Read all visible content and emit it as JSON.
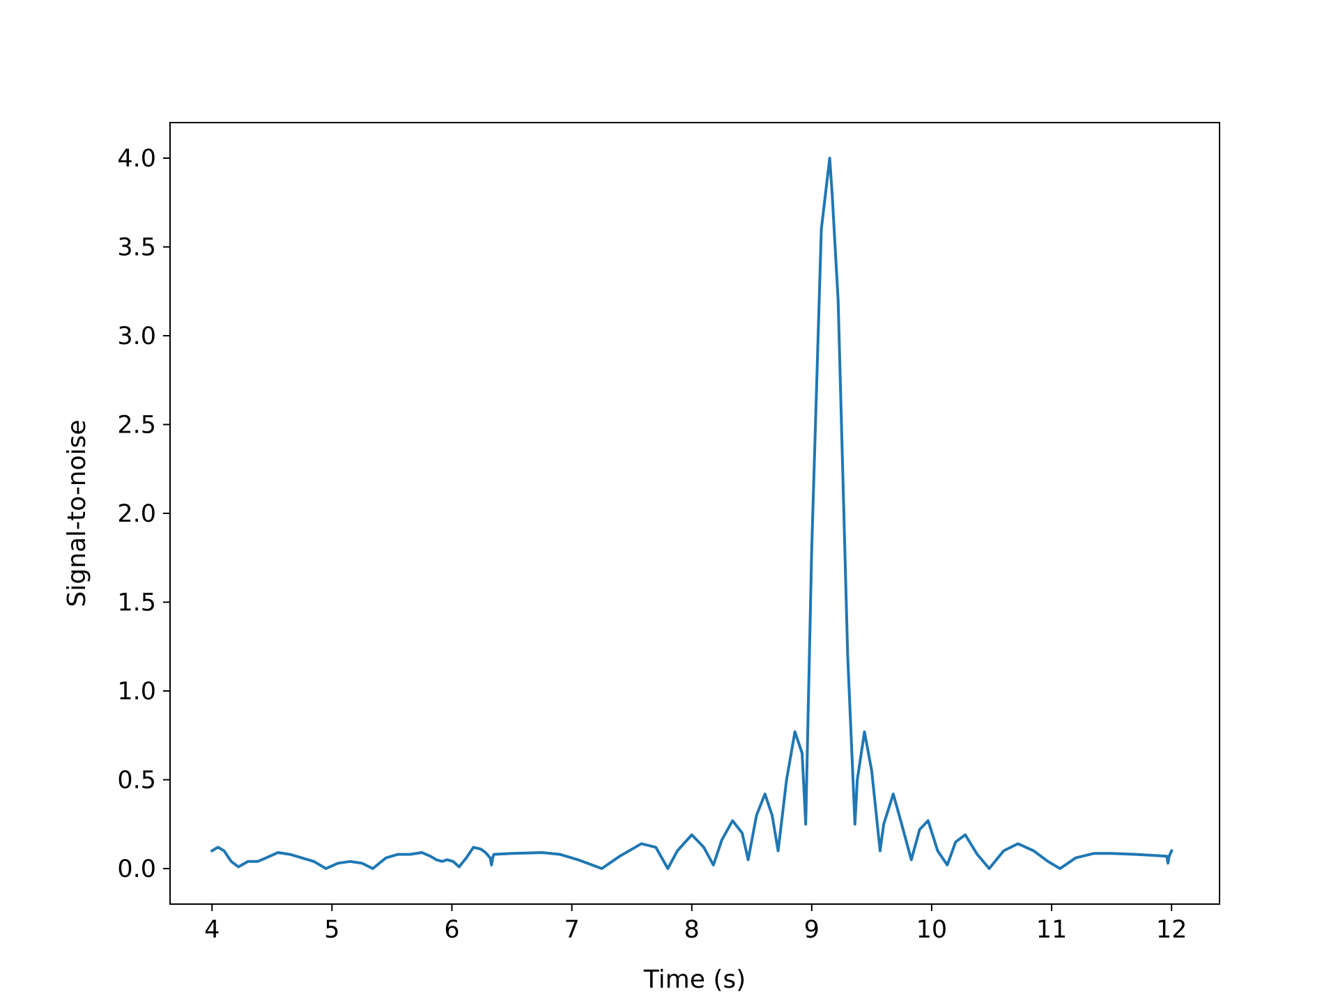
{
  "chart_data": {
    "type": "line",
    "title": "",
    "xlabel": "Time (s)",
    "ylabel": "Signal-to-noise",
    "xlim": [
      3.65,
      12.4
    ],
    "ylim": [
      -0.2,
      4.2
    ],
    "xticks": [
      4,
      5,
      6,
      7,
      8,
      9,
      10,
      11,
      12
    ],
    "xtick_labels": [
      "4",
      "5",
      "6",
      "7",
      "8",
      "9",
      "10",
      "11",
      "12"
    ],
    "yticks": [
      0.0,
      0.5,
      1.0,
      1.5,
      2.0,
      2.5,
      3.0,
      3.5,
      4.0
    ],
    "ytick_labels": [
      "0.0",
      "0.5",
      "1.0",
      "1.5",
      "2.0",
      "2.5",
      "3.0",
      "3.5",
      "4.0"
    ],
    "grid": false,
    "series": [
      {
        "color": "#1f77b4",
        "x": [
          4.0,
          4.05,
          4.1,
          4.16,
          4.22,
          4.3,
          4.38,
          4.45,
          4.55,
          4.65,
          4.75,
          4.85,
          4.95,
          5.05,
          5.15,
          5.25,
          5.34,
          5.45,
          5.55,
          5.65,
          5.75,
          5.82,
          5.87,
          5.92,
          5.96,
          6.01,
          6.06,
          6.12,
          6.18,
          6.24,
          6.28,
          6.32,
          6.33,
          6.34,
          6.35,
          6.5,
          6.75,
          6.9,
          7.05,
          7.25,
          7.4,
          7.58,
          7.7,
          7.8,
          7.88,
          8.0,
          8.1,
          8.18,
          8.25,
          8.34,
          8.42,
          8.47,
          8.54,
          8.61,
          8.67,
          8.72,
          8.79,
          8.86,
          8.92,
          8.95,
          9.0,
          9.08,
          9.15,
          9.17,
          9.22,
          9.3,
          9.36,
          9.38,
          9.44,
          9.5,
          9.57,
          9.6,
          9.68,
          9.75,
          9.83,
          9.9,
          9.97,
          10.05,
          10.13,
          10.2,
          10.28,
          10.38,
          10.48,
          10.6,
          10.72,
          10.85,
          10.97,
          11.07,
          11.2,
          11.35,
          11.5,
          11.7,
          11.96,
          11.97,
          11.98,
          12.0
        ],
        "y": [
          0.1,
          0.12,
          0.1,
          0.04,
          0.01,
          0.04,
          0.04,
          0.06,
          0.09,
          0.08,
          0.06,
          0.04,
          0.0,
          0.03,
          0.04,
          0.03,
          0.0,
          0.06,
          0.08,
          0.08,
          0.09,
          0.07,
          0.05,
          0.04,
          0.05,
          0.04,
          0.01,
          0.06,
          0.12,
          0.11,
          0.09,
          0.06,
          0.02,
          0.06,
          0.08,
          0.085,
          0.09,
          0.08,
          0.05,
          0.0,
          0.07,
          0.14,
          0.12,
          0.0,
          0.1,
          0.19,
          0.12,
          0.02,
          0.16,
          0.27,
          0.2,
          0.05,
          0.3,
          0.42,
          0.3,
          0.1,
          0.5,
          0.77,
          0.65,
          0.25,
          1.8,
          3.6,
          4.0,
          3.8,
          3.2,
          1.2,
          0.25,
          0.5,
          0.77,
          0.55,
          0.1,
          0.25,
          0.42,
          0.25,
          0.05,
          0.22,
          0.27,
          0.1,
          0.02,
          0.15,
          0.19,
          0.08,
          0.0,
          0.1,
          0.14,
          0.1,
          0.04,
          0.0,
          0.06,
          0.085,
          0.085,
          0.08,
          0.07,
          0.03,
          0.07,
          0.1
        ]
      }
    ]
  }
}
